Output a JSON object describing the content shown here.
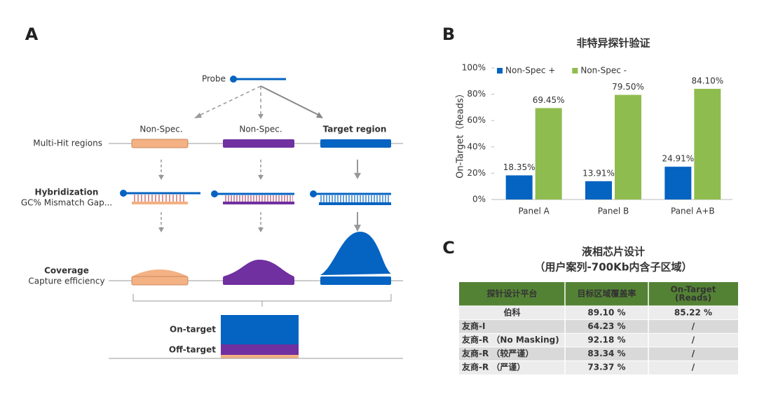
{
  "panels": [
    "A",
    "B",
    "C"
  ],
  "diagram": {
    "probe": "Probe",
    "non_spec_1": "Non-Spec.",
    "non_spec_2": "Non-Spec.",
    "target_region": "Target region",
    "multi_hit": "Multi-Hit regions",
    "hybridization": "Hybridization",
    "hybridization_sub": "GC%  Mismatch Gap...",
    "coverage": "Coverage",
    "coverage_sub": "Capture efficiency",
    "on_target": "On-target",
    "off_target": "Off-target"
  },
  "chart_data": {
    "type": "bar",
    "title": "非特异探针验证",
    "ylabel": "On-Target（Reads）",
    "categories": [
      "Panel A",
      "Panel B",
      "Panel A+B"
    ],
    "series": [
      {
        "name": "Non-Spec +",
        "color": "#0563c1",
        "values": [
          18.35,
          13.91,
          24.91
        ],
        "value_labels": [
          "18.35%",
          "13.91%",
          "24.91%"
        ]
      },
      {
        "name": "Non-Spec -",
        "color": "#8fbc4f",
        "values": [
          69.45,
          79.5,
          84.1
        ],
        "value_labels": [
          "69.45%",
          "79.50%",
          "84.10%"
        ]
      }
    ],
    "ylim": [
      0,
      100
    ],
    "yticks": [
      {
        "value": 0,
        "label": "0%"
      },
      {
        "value": 20,
        "label": "20%"
      },
      {
        "value": 40,
        "label": "40%"
      },
      {
        "value": 60,
        "label": "60%"
      },
      {
        "value": 80,
        "label": "80%"
      },
      {
        "value": 100,
        "label": "100%"
      }
    ],
    "legend": "top-left",
    "grid": false
  },
  "table": {
    "title": [
      "液相芯片设计",
      "（用户案列-700Kb内含子区域）"
    ],
    "header": [
      "探针设计平台",
      "目标区域覆盖率",
      [
        "On-Target",
        "(Reads)"
      ]
    ],
    "rows": [
      [
        "伯科",
        "89.10  %",
        "85.22  %"
      ],
      [
        "友商-I",
        "64.23  %",
        "/"
      ],
      [
        "友商-R （No Masking)",
        "92.18  %",
        "/"
      ],
      [
        "友商-R （较严谨）",
        "83.34  %",
        "/"
      ],
      [
        "友商-R （严谨）",
        "73.37  %",
        "/"
      ]
    ]
  }
}
